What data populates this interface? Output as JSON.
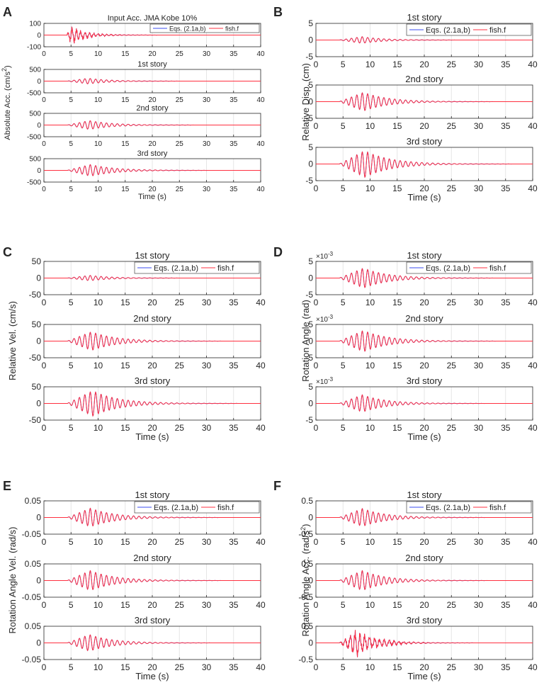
{
  "figure": {
    "time_label": "Time (s)",
    "x_ticks": [
      "0",
      "5",
      "10",
      "15",
      "20",
      "25",
      "30",
      "35",
      "40"
    ],
    "colors": {
      "eqs": "#3b4cf0",
      "fish": "#ff3040",
      "axis": "#262626",
      "grid": "#e6e6e6"
    }
  },
  "chart_data": [
    {
      "type": "line",
      "panel": "A",
      "ylabel": "Absolute Acc. (cm/s²)",
      "ylabel_main": "Absolute Acc.",
      "ylabel_unit": "(cm/s",
      "ylabel_unit_sup": "2",
      "ylabel_unit_end": ")",
      "legend": [
        "Eqs. (2.1a,b)",
        "fish.f"
      ],
      "subplots": [
        {
          "title": "Input Acc. JMA Kobe 10%",
          "yticks": [
            "100",
            "0",
            "-100"
          ],
          "ylim": [
            -100,
            100
          ],
          "peak": 60,
          "onset": 4.2,
          "tpeak": 5.0,
          "period": 0.8,
          "decay": 3.0,
          "noise": true
        },
        {
          "title": "1st story",
          "yticks": [
            "500",
            "0",
            "-500"
          ],
          "ylim": [
            -500,
            500
          ],
          "peak": 120,
          "onset": 4.3,
          "tpeak": 8.2,
          "period": 1.0,
          "decay": 4.0,
          "noise": false
        },
        {
          "title": "2nd story",
          "yticks": [
            "500",
            "0",
            "-500"
          ],
          "ylim": [
            -500,
            500
          ],
          "peak": 190,
          "onset": 4.3,
          "tpeak": 8.4,
          "period": 1.0,
          "decay": 4.2,
          "noise": false
        },
        {
          "title": "3rd story",
          "yticks": [
            "500",
            "0",
            "-500"
          ],
          "ylim": [
            -500,
            500
          ],
          "peak": 250,
          "onset": 4.3,
          "tpeak": 8.6,
          "period": 1.0,
          "decay": 4.5,
          "noise": false
        }
      ]
    },
    {
      "type": "line",
      "panel": "B",
      "ylabel": "Relative Disp. (cm)",
      "legend": [
        "Eqs. (2.1a,b)",
        "fish.f"
      ],
      "subplots": [
        {
          "title": "1st story",
          "yticks": [
            "5",
            "0",
            "-5"
          ],
          "ylim": [
            -5,
            5
          ],
          "peak": 1.0,
          "onset": 4.3,
          "tpeak": 8.5,
          "period": 1.0,
          "decay": 4.0,
          "noise": false
        },
        {
          "title": "2nd story",
          "yticks": [
            "5",
            "0",
            "-5"
          ],
          "ylim": [
            -5,
            5
          ],
          "peak": 2.8,
          "onset": 4.3,
          "tpeak": 8.8,
          "period": 1.0,
          "decay": 4.5,
          "noise": false
        },
        {
          "title": "3rd story",
          "yticks": [
            "5",
            "0",
            "-5"
          ],
          "ylim": [
            -5,
            5
          ],
          "peak": 4.0,
          "onset": 4.3,
          "tpeak": 9.0,
          "period": 1.0,
          "decay": 4.8,
          "noise": false
        }
      ]
    },
    {
      "type": "line",
      "panel": "C",
      "ylabel": "Relative Vel. (cm/s)",
      "legend": [
        "Eqs. (2.1a,b)",
        "fish.f"
      ],
      "subplots": [
        {
          "title": "1st story",
          "yticks": [
            "50",
            "0",
            "-50"
          ],
          "ylim": [
            -50,
            50
          ],
          "peak": 8,
          "onset": 4.3,
          "tpeak": 8.5,
          "period": 1.0,
          "decay": 4.0,
          "noise": false
        },
        {
          "title": "2nd story",
          "yticks": [
            "50",
            "0",
            "-50"
          ],
          "ylim": [
            -50,
            50
          ],
          "peak": 28,
          "onset": 4.3,
          "tpeak": 8.8,
          "period": 1.0,
          "decay": 4.5,
          "noise": false
        },
        {
          "title": "3rd story",
          "yticks": [
            "50",
            "0",
            "-50"
          ],
          "ylim": [
            -50,
            50
          ],
          "peak": 38,
          "onset": 4.3,
          "tpeak": 9.0,
          "period": 1.0,
          "decay": 4.8,
          "noise": false
        }
      ]
    },
    {
      "type": "line",
      "panel": "D",
      "ylabel": "Rotation Angle (rad)",
      "legend": [
        "Eqs. (2.1a,b)",
        "fish.f"
      ],
      "subplots": [
        {
          "title": "1st story",
          "multiplier": "×10",
          "multiplier_exp": "-3",
          "yticks": [
            "5",
            "0",
            "-5"
          ],
          "ylim": [
            -5,
            5
          ],
          "peak": 3.0,
          "onset": 4.3,
          "tpeak": 8.8,
          "period": 1.0,
          "decay": 4.5,
          "noise": false
        },
        {
          "title": "2nd story",
          "multiplier": "×10",
          "multiplier_exp": "-3",
          "yticks": [
            "5",
            "0",
            "-5"
          ],
          "ylim": [
            -5,
            5
          ],
          "peak": 3.2,
          "onset": 4.3,
          "tpeak": 8.8,
          "period": 1.0,
          "decay": 4.5,
          "noise": false
        },
        {
          "title": "3rd story",
          "multiplier": "×10",
          "multiplier_exp": "-3",
          "yticks": [
            "5",
            "0",
            "-5"
          ],
          "ylim": [
            -5,
            5
          ],
          "peak": 2.6,
          "onset": 4.3,
          "tpeak": 8.6,
          "period": 1.0,
          "decay": 4.3,
          "noise": false
        }
      ]
    },
    {
      "type": "line",
      "panel": "E",
      "ylabel": "Rotation Angle Vel. (rad/s)",
      "legend": [
        "Eqs. (2.1a,b)",
        "fish.f"
      ],
      "subplots": [
        {
          "title": "1st story",
          "yticks": [
            "0.05",
            "0",
            "-0.05"
          ],
          "ylim": [
            -0.05,
            0.05
          ],
          "peak": 0.028,
          "onset": 4.3,
          "tpeak": 8.6,
          "period": 1.0,
          "decay": 4.5,
          "noise": false
        },
        {
          "title": "2nd story",
          "yticks": [
            "0.05",
            "0",
            "-0.05"
          ],
          "ylim": [
            -0.05,
            0.05
          ],
          "peak": 0.03,
          "onset": 4.3,
          "tpeak": 8.6,
          "period": 1.0,
          "decay": 4.5,
          "noise": false
        },
        {
          "title": "3rd story",
          "yticks": [
            "0.05",
            "0",
            "-0.05"
          ],
          "ylim": [
            -0.05,
            0.05
          ],
          "peak": 0.025,
          "onset": 4.3,
          "tpeak": 8.4,
          "period": 1.0,
          "decay": 4.3,
          "noise": false
        }
      ]
    },
    {
      "type": "line",
      "panel": "F",
      "ylabel": "Rotation Angle Acc. (rad/s²)",
      "ylabel_main": "Rotation Angle Acc.",
      "ylabel_unit": "(rad/s",
      "ylabel_unit_sup": "2",
      "ylabel_unit_end": ")",
      "legend": [
        "Eqs. (2.1a,b)",
        "fish.f"
      ],
      "subplots": [
        {
          "title": "1st story",
          "yticks": [
            "0.5",
            "0",
            "-0.5"
          ],
          "ylim": [
            -0.5,
            0.5
          ],
          "peak": 0.27,
          "onset": 4.3,
          "tpeak": 8.6,
          "period": 1.0,
          "decay": 4.3,
          "noise": false
        },
        {
          "title": "2nd story",
          "yticks": [
            "0.5",
            "0",
            "-0.5"
          ],
          "ylim": [
            -0.5,
            0.5
          ],
          "peak": 0.3,
          "onset": 4.3,
          "tpeak": 8.6,
          "period": 1.0,
          "decay": 4.3,
          "noise": false
        },
        {
          "title": "3rd story",
          "yticks": [
            "0.5",
            "0",
            "-0.5"
          ],
          "ylim": [
            -0.5,
            0.5
          ],
          "peak": 0.3,
          "onset": 4.3,
          "tpeak": 7.5,
          "period": 0.9,
          "decay": 4.0,
          "noise": true
        }
      ]
    }
  ]
}
